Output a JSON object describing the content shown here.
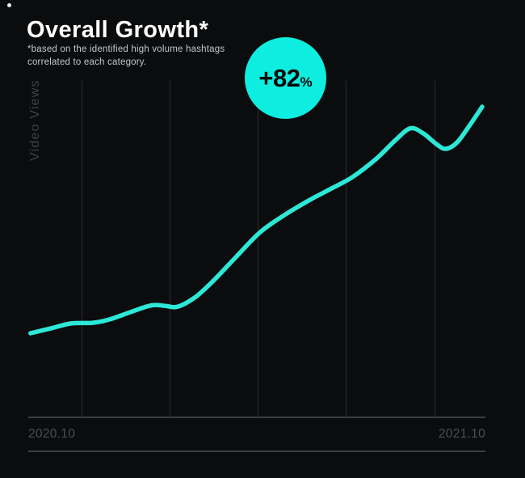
{
  "header": {
    "title": "Overall Growth*",
    "subtitle_line1": "*based on the identified high volume hashtags",
    "subtitle_line2": "correlated to each category."
  },
  "badge": {
    "value": "+82",
    "unit": "%",
    "bg_color": "#0deee0",
    "text_color": "#070808"
  },
  "chart_data": {
    "type": "line",
    "title": "Overall Growth*",
    "ylabel": "Video Views",
    "x_tick_labels": [
      "2020.10",
      "2021.10"
    ],
    "x_range": [
      "2020.10",
      "2021.10"
    ],
    "ylim": [
      0,
      100
    ],
    "y_scale_note": "relative video-views index, no numeric ticks shown",
    "annotation": "+82%",
    "legend": "none",
    "grid": "vertical-only",
    "line_color": "#2de8d6",
    "gridline_color": "#2b2c2e",
    "axis_color": "#3b3d3f",
    "tick_label_color": "#4c4e51",
    "background_color": "#0b0c0d",
    "gridlines_t": [
      0.117,
      0.309,
      0.502,
      0.694,
      0.889
    ],
    "points": [
      [
        0.005,
        25.0
      ],
      [
        0.048,
        26.4
      ],
      [
        0.094,
        27.9
      ],
      [
        0.141,
        28.1
      ],
      [
        0.178,
        29.1
      ],
      [
        0.224,
        31.3
      ],
      [
        0.27,
        33.3
      ],
      [
        0.3,
        33.1
      ],
      [
        0.327,
        32.9
      ],
      [
        0.366,
        35.8
      ],
      [
        0.405,
        40.6
      ],
      [
        0.454,
        47.6
      ],
      [
        0.507,
        55.0
      ],
      [
        0.56,
        60.1
      ],
      [
        0.617,
        64.7
      ],
      [
        0.663,
        68.0
      ],
      [
        0.709,
        71.4
      ],
      [
        0.76,
        76.7
      ],
      [
        0.804,
        82.5
      ],
      [
        0.836,
        85.9
      ],
      [
        0.864,
        84.4
      ],
      [
        0.892,
        81.3
      ],
      [
        0.913,
        79.8
      ],
      [
        0.938,
        81.7
      ],
      [
        0.963,
        86.3
      ],
      [
        0.993,
        92.3
      ]
    ],
    "points_format": "[t, v] where t = fraction along x-axis 2020.10..2021.10, v = relative index 0..100"
  }
}
